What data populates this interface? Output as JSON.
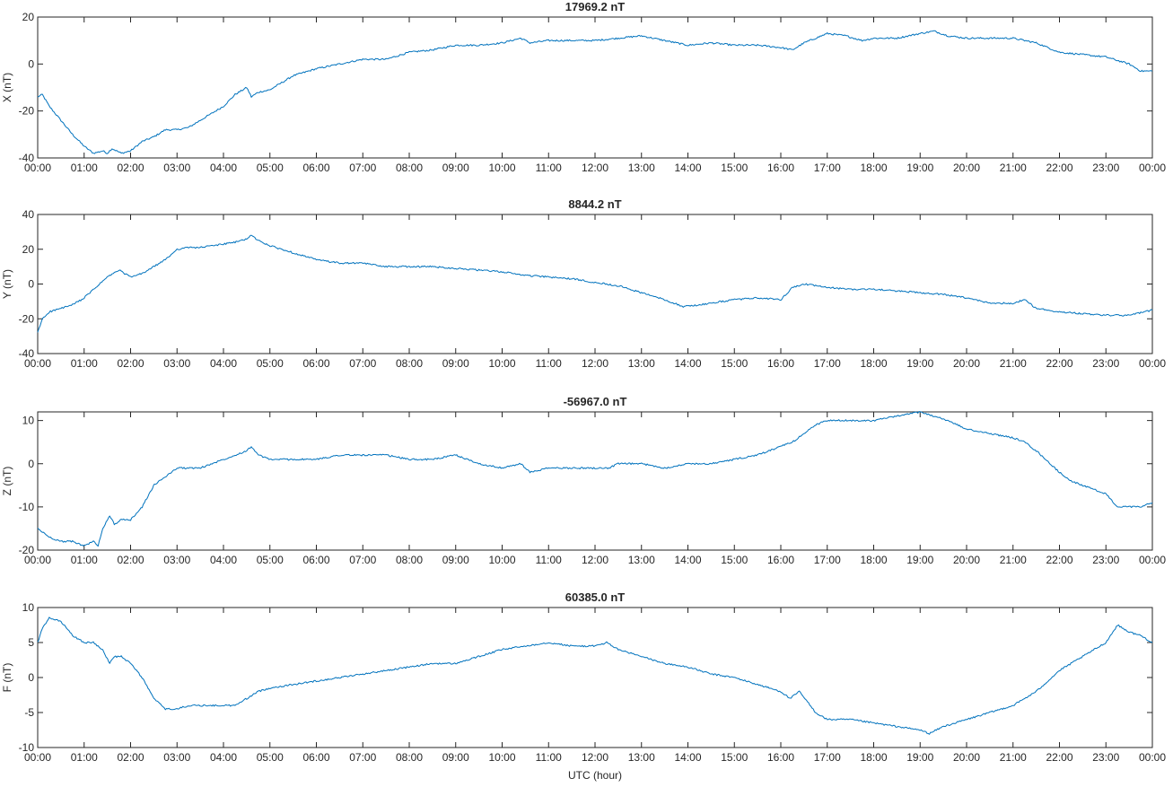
{
  "xlabel": "UTC (hour)",
  "x_tick_labels": [
    "00:00",
    "01:00",
    "02:00",
    "03:00",
    "04:00",
    "05:00",
    "06:00",
    "07:00",
    "08:00",
    "09:00",
    "10:00",
    "11:00",
    "12:00",
    "13:00",
    "14:00",
    "15:00",
    "16:00",
    "17:00",
    "18:00",
    "19:00",
    "20:00",
    "21:00",
    "22:00",
    "23:00",
    "00:00"
  ],
  "colors": {
    "series": "#0072BD",
    "axis": "#262626",
    "text": "#262626",
    "background": "#ffffff"
  },
  "chart_data": [
    {
      "type": "line",
      "title": "17969.2 nT",
      "ylabel": "X (nT)",
      "xlim": [
        0,
        24
      ],
      "ylim": [
        -40,
        20
      ],
      "yticks": [
        -40,
        -20,
        0,
        20
      ],
      "grid": false,
      "x": [
        0,
        0.1,
        0.25,
        0.5,
        0.75,
        1.0,
        1.2,
        1.4,
        1.5,
        1.6,
        1.8,
        2.0,
        2.25,
        2.5,
        2.75,
        3.0,
        3.25,
        3.5,
        3.75,
        4.0,
        4.25,
        4.5,
        4.6,
        4.75,
        5.0,
        5.25,
        5.5,
        6.0,
        6.25,
        6.5,
        7.0,
        7.5,
        8.0,
        8.5,
        9.0,
        9.5,
        10.0,
        10.4,
        10.6,
        11.0,
        11.5,
        12.0,
        12.5,
        13.0,
        13.5,
        14.0,
        14.5,
        15.0,
        15.5,
        16.0,
        16.25,
        16.5,
        17.0,
        17.4,
        17.75,
        18.0,
        18.5,
        19.0,
        19.3,
        19.6,
        20.0,
        20.5,
        21.0,
        21.5,
        22.0,
        22.5,
        23.0,
        23.5,
        23.75,
        24.0
      ],
      "y": [
        -14,
        -13,
        -18,
        -24,
        -30,
        -35,
        -38,
        -37,
        -38,
        -36,
        -38,
        -37,
        -33,
        -31,
        -28,
        -28,
        -27,
        -24,
        -21,
        -18,
        -13,
        -10,
        -14,
        -12,
        -11,
        -8,
        -5,
        -2,
        -1,
        0,
        2,
        2,
        5,
        6,
        8,
        8,
        9,
        11,
        9,
        10,
        10,
        10,
        11,
        12,
        10,
        8,
        9,
        8,
        8,
        7,
        6,
        9,
        13,
        12,
        10,
        11,
        11,
        13,
        14,
        12,
        11,
        11,
        11,
        9,
        5,
        4,
        3,
        0,
        -3,
        -3
      ]
    },
    {
      "type": "line",
      "title": "8844.2 nT",
      "ylabel": "Y (nT)",
      "xlim": [
        0,
        24
      ],
      "ylim": [
        -40,
        40
      ],
      "yticks": [
        -40,
        -20,
        0,
        20,
        40
      ],
      "grid": false,
      "x": [
        0,
        0.1,
        0.25,
        0.5,
        0.75,
        1.0,
        1.25,
        1.5,
        1.75,
        2.0,
        2.25,
        2.5,
        2.75,
        3.0,
        3.25,
        3.5,
        4.0,
        4.25,
        4.5,
        4.6,
        4.75,
        5.0,
        5.5,
        6.0,
        6.5,
        7.0,
        7.5,
        8.0,
        8.5,
        9.0,
        9.5,
        10.0,
        10.5,
        11.0,
        11.5,
        12.0,
        12.5,
        13.0,
        13.5,
        13.9,
        14.25,
        14.5,
        15.0,
        15.5,
        16.0,
        16.25,
        16.5,
        17.0,
        17.5,
        18.0,
        18.5,
        19.0,
        19.5,
        20.0,
        20.5,
        21.0,
        21.25,
        21.5,
        22.0,
        22.5,
        23.0,
        23.5,
        24.0
      ],
      "y": [
        -28,
        -20,
        -16,
        -14,
        -12,
        -8,
        -2,
        4,
        8,
        4,
        6,
        10,
        14,
        20,
        21,
        21,
        23,
        24,
        26,
        28,
        25,
        22,
        18,
        14,
        12,
        12,
        10,
        10,
        10,
        9,
        8,
        7,
        5,
        4,
        3,
        1,
        -1,
        -5,
        -9,
        -13,
        -12,
        -11,
        -9,
        -8,
        -9,
        -2,
        0,
        -2,
        -3,
        -3,
        -4,
        -5,
        -6,
        -8,
        -11,
        -11,
        -9,
        -14,
        -16,
        -17,
        -18,
        -18,
        -15
      ]
    },
    {
      "type": "line",
      "title": "-56967.0 nT",
      "ylabel": "Z (nT)",
      "xlim": [
        0,
        24
      ],
      "ylim": [
        -20,
        12
      ],
      "yticks": [
        -20,
        -10,
        0,
        10
      ],
      "grid": false,
      "x": [
        0,
        0.25,
        0.5,
        0.75,
        1.0,
        1.2,
        1.3,
        1.4,
        1.55,
        1.65,
        1.8,
        2.0,
        2.25,
        2.5,
        2.75,
        3.0,
        3.25,
        3.5,
        3.75,
        4.0,
        4.25,
        4.5,
        4.6,
        4.75,
        5.0,
        5.5,
        6.0,
        6.5,
        7.0,
        7.5,
        8.0,
        8.5,
        9.0,
        9.5,
        10.0,
        10.4,
        10.6,
        11.0,
        11.5,
        12.0,
        12.3,
        12.5,
        13.0,
        13.5,
        14.0,
        14.5,
        15.0,
        15.5,
        16.0,
        16.25,
        16.5,
        16.75,
        17.0,
        17.5,
        18.0,
        18.5,
        19.0,
        19.3,
        19.6,
        20.0,
        20.5,
        21.0,
        21.25,
        21.5,
        22.0,
        22.25,
        22.5,
        23.0,
        23.25,
        23.5,
        23.75,
        24.0
      ],
      "y": [
        -15,
        -17,
        -18,
        -18,
        -19,
        -18,
        -19,
        -15,
        -12,
        -14,
        -13,
        -13,
        -10,
        -5,
        -3,
        -1,
        -1,
        -1,
        0,
        1,
        2,
        3,
        4,
        2,
        1,
        1,
        1,
        2,
        2,
        2,
        1,
        1,
        2,
        0,
        -1,
        0,
        -2,
        -1,
        -1,
        -1,
        -1,
        0,
        0,
        -1,
        0,
        0,
        1,
        2,
        4,
        5,
        7,
        9,
        10,
        10,
        10,
        11,
        12,
        11,
        10,
        8,
        7,
        6,
        5,
        3,
        -2,
        -4,
        -5,
        -7,
        -10,
        -10,
        -10,
        -9
      ]
    },
    {
      "type": "line",
      "title": "60385.0 nT",
      "ylabel": "F (nT)",
      "xlim": [
        0,
        24
      ],
      "ylim": [
        -10,
        10
      ],
      "yticks": [
        -10,
        -5,
        0,
        5,
        10
      ],
      "grid": false,
      "x": [
        0,
        0.1,
        0.25,
        0.5,
        0.75,
        1.0,
        1.2,
        1.4,
        1.55,
        1.65,
        1.8,
        2.0,
        2.25,
        2.5,
        2.75,
        3.0,
        3.25,
        3.5,
        4.0,
        4.25,
        4.5,
        4.75,
        5.0,
        5.5,
        6.0,
        6.5,
        7.0,
        7.5,
        8.0,
        8.5,
        9.0,
        9.5,
        10.0,
        10.5,
        11.0,
        11.5,
        12.0,
        12.25,
        12.5,
        13.0,
        13.5,
        14.0,
        14.5,
        15.0,
        15.5,
        16.0,
        16.2,
        16.4,
        16.75,
        17.0,
        17.5,
        18.0,
        18.5,
        19.0,
        19.2,
        19.5,
        20.0,
        20.5,
        21.0,
        21.5,
        22.0,
        22.5,
        23.0,
        23.25,
        23.5,
        23.75,
        24.0
      ],
      "y": [
        5,
        7,
        8.5,
        8,
        6,
        5,
        5,
        4,
        2,
        3,
        3,
        2,
        0,
        -3,
        -4.5,
        -4.5,
        -4,
        -4,
        -4,
        -4,
        -3,
        -2,
        -1.5,
        -1,
        -0.5,
        0,
        0.5,
        1,
        1.5,
        2,
        2,
        3,
        4,
        4.5,
        5,
        4.5,
        4.5,
        5,
        4,
        3,
        2,
        1.5,
        0.5,
        0,
        -1,
        -2,
        -3,
        -2,
        -5,
        -6,
        -6,
        -6.5,
        -7,
        -7.5,
        -8,
        -7,
        -6,
        -5,
        -4,
        -2,
        1,
        3,
        5,
        7.5,
        6.5,
        6,
        5
      ]
    }
  ]
}
